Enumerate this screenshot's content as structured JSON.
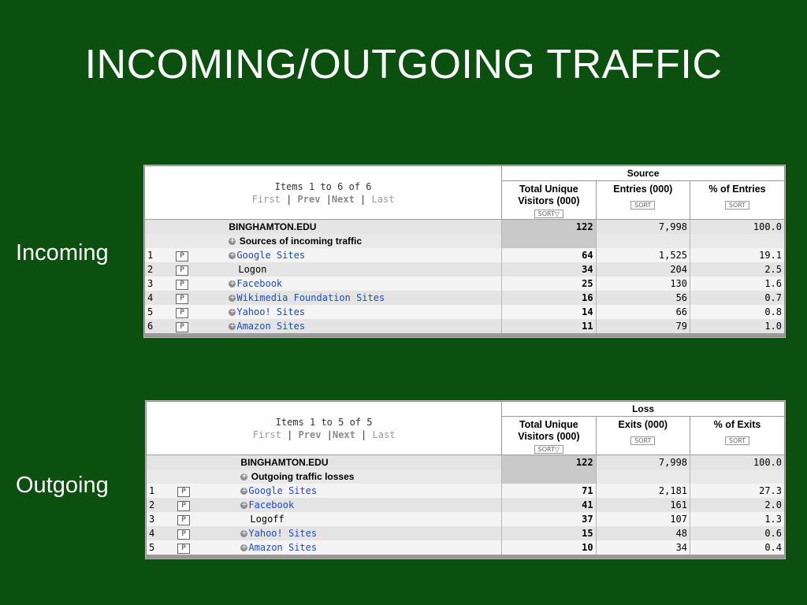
{
  "slide": {
    "title": "INCOMING/OUTGOING TRAFFIC",
    "incoming_label": "Incoming",
    "outgoing_label": "Outgoing"
  },
  "incoming": {
    "items_text": "Items 1 to 6 of 6",
    "nav": {
      "first": "First",
      "prev": "Prev",
      "next": "Next",
      "last": "Last"
    },
    "group_header": "Source",
    "columns": [
      {
        "label_1": "Total Unique",
        "label_2": "Visitors (000)",
        "sort": "SORT▽"
      },
      {
        "label_1": "Entries (000)",
        "label_2": "",
        "sort": "SORT"
      },
      {
        "label_1": "% of Entries",
        "label_2": "",
        "sort": "SORT"
      }
    ],
    "total_row": {
      "name": "BINGHAMTON.EDU",
      "c1": "122",
      "c2": "7,998",
      "c3": "100.0"
    },
    "section_label": "Sources of incoming traffic",
    "p_label": "P",
    "rows": [
      {
        "rank": "1",
        "name": "Google Sites",
        "link": true,
        "c1": "64",
        "c2": "1,525",
        "c3": "19.1"
      },
      {
        "rank": "2",
        "name": "Logon",
        "link": false,
        "c1": "34",
        "c2": "204",
        "c3": "2.5"
      },
      {
        "rank": "3",
        "name": "Facebook",
        "link": true,
        "c1": "25",
        "c2": "130",
        "c3": "1.6"
      },
      {
        "rank": "4",
        "name": "Wikimedia Foundation Sites",
        "link": true,
        "c1": "16",
        "c2": "56",
        "c3": "0.7"
      },
      {
        "rank": "5",
        "name": "Yahoo! Sites",
        "link": true,
        "c1": "14",
        "c2": "66",
        "c3": "0.8"
      },
      {
        "rank": "6",
        "name": "Amazon Sites",
        "link": true,
        "c1": "11",
        "c2": "79",
        "c3": "1.0"
      }
    ]
  },
  "outgoing": {
    "items_text": "Items 1 to 5 of 5",
    "nav": {
      "first": "First",
      "prev": "Prev",
      "next": "Next",
      "last": "Last"
    },
    "group_header": "Loss",
    "columns": [
      {
        "label_1": "Total Unique",
        "label_2": "Visitors (000)",
        "sort": "SORT▽"
      },
      {
        "label_1": "Exits (000)",
        "label_2": "",
        "sort": "SORT"
      },
      {
        "label_1": "% of Exits",
        "label_2": "",
        "sort": "SORT"
      }
    ],
    "total_row": {
      "name": "BINGHAMTON.EDU",
      "c1": "122",
      "c2": "7,998",
      "c3": "100.0"
    },
    "section_label": "Outgoing traffic losses",
    "p_label": "P",
    "rows": [
      {
        "rank": "1",
        "name": "Google Sites",
        "link": true,
        "c1": "71",
        "c2": "2,181",
        "c3": "27.3"
      },
      {
        "rank": "2",
        "name": "Facebook",
        "link": true,
        "c1": "41",
        "c2": "161",
        "c3": "2.0"
      },
      {
        "rank": "3",
        "name": "Logoff",
        "link": false,
        "c1": "37",
        "c2": "107",
        "c3": "1.3"
      },
      {
        "rank": "4",
        "name": "Yahoo! Sites",
        "link": true,
        "c1": "15",
        "c2": "48",
        "c3": "0.6"
      },
      {
        "rank": "5",
        "name": "Amazon Sites",
        "link": true,
        "c1": "10",
        "c2": "34",
        "c3": "0.4"
      }
    ]
  }
}
